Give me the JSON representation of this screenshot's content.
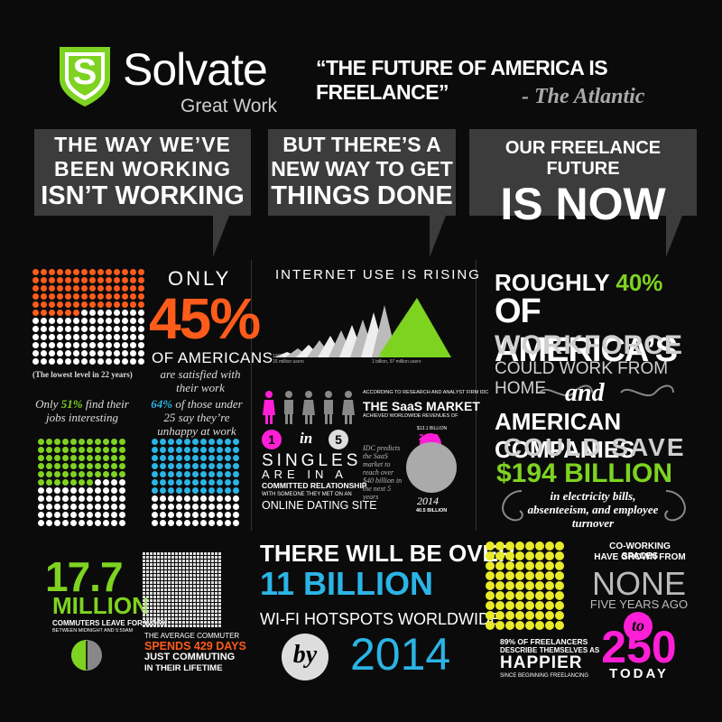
{
  "colors": {
    "green": "#7ed321",
    "orange": "#ff5b1a",
    "blue": "#2bb4e6",
    "magenta": "#ff1fd6",
    "bubble": "#3c3c3c",
    "bg": "#0b0b0b",
    "smiley": "#e8ea2a"
  },
  "header": {
    "logo_letter": "S",
    "brand": "Solvate",
    "tagline": "Great Work",
    "quote": "“THE FUTURE OF AMERICA IS FREELANCE”",
    "quote_source": "- The Atlantic"
  },
  "bubbles": [
    {
      "line1": "THE WAY WE’VE",
      "line2": "BEEN WORKING",
      "line3": "ISN’T WORKING"
    },
    {
      "line1": "BUT THERE’S A",
      "line2": "NEW WAY TO GET",
      "line3": "THINGS DONE"
    },
    {
      "line1": "OUR FREELANCE FUTURE",
      "line2": "IS NOW"
    }
  ],
  "stat45": {
    "only": "ONLY",
    "pct": "45%",
    "of": "OF AMERICANS",
    "note": "are satisfied with their work",
    "caption": "(The lowest level in 22 years)",
    "filled": 45
  },
  "stat51": {
    "text_a": "Only ",
    "pct": "51%",
    "text_b": " find their jobs interesting",
    "filled": 51
  },
  "stat64": {
    "pct": "64%",
    "text_a": " of those under 25 say they’re unhappy at work",
    "filled": 64
  },
  "internet": {
    "title": "INTERNET USE IS RISING",
    "left_year": "1995",
    "left_value": "16 million users",
    "right_year": "2009",
    "right_value": "1 billion, 97 million users"
  },
  "singles": {
    "one": "1",
    "in": "in",
    "five": "5",
    "l1": "SINGLES",
    "l2": "ARE IN A",
    "l3": "COMMITTED RELATIONSHIP",
    "l4": "WITH SOMEONE THEY MET ON AN",
    "l5": "ONLINE DATING SITE"
  },
  "saas": {
    "top": "ACCORDING TO RESEARCH AND ANALYST FIRM IDC",
    "title": "THE SaaS MARKET",
    "sub": "ACHIEVED WORLDWIDE REVENUES OF",
    "small_value": "$13.1 BILLION",
    "small_year": "2009",
    "side": "IDC predicts the SaaS market to reach over $40 billion in the next 5 years",
    "big_year": "2014",
    "big_value": "40.5 BILLION"
  },
  "workforce": {
    "l1a": "ROUGHLY ",
    "l1b": "40%",
    "l2": "OF AMERICA’S",
    "l3": "WORKFORCE",
    "l4": "COULD WORK FROM HOME",
    "and": "and",
    "l5": "AMERICAN COMPANIES",
    "l6": "COULD SAVE",
    "l7": "$194 BILLION",
    "note": "in electricity bills, absenteeism, and employee turnover"
  },
  "commuters": {
    "big": "17.7",
    "unit": "MILLION",
    "l1": "COMMUTERS LEAVE FOR WORK",
    "l2": "BETWEEN MIDNIGHT AND 5:59AM",
    "avg": "THE AVERAGE COMMUTER",
    "spends": "SPENDS 429 DAYS",
    "just": "JUST COMMUTING",
    "life": "IN THEIR LIFETIME"
  },
  "wifi": {
    "l1": "THERE WILL BE OVER",
    "l2": "11 BILLION",
    "l3": "WI-FI HOTSPOTS WORLDWIDE",
    "by": "by",
    "year": "2014"
  },
  "freelancers": {
    "l1": "89% OF FREELANCERS",
    "l2": "DESCRIBE THEMSELVES AS",
    "big": "HAPPIER",
    "l3": "SINCE BEGINNING FREELANCING"
  },
  "coworking": {
    "l1": "CO-WORKING SPACES",
    "l2": "HAVE GROWN FROM",
    "none": "NONE",
    "ago": "FIVE YEARS AGO",
    "to": "to",
    "num": "250",
    "today": "TODAY"
  }
}
